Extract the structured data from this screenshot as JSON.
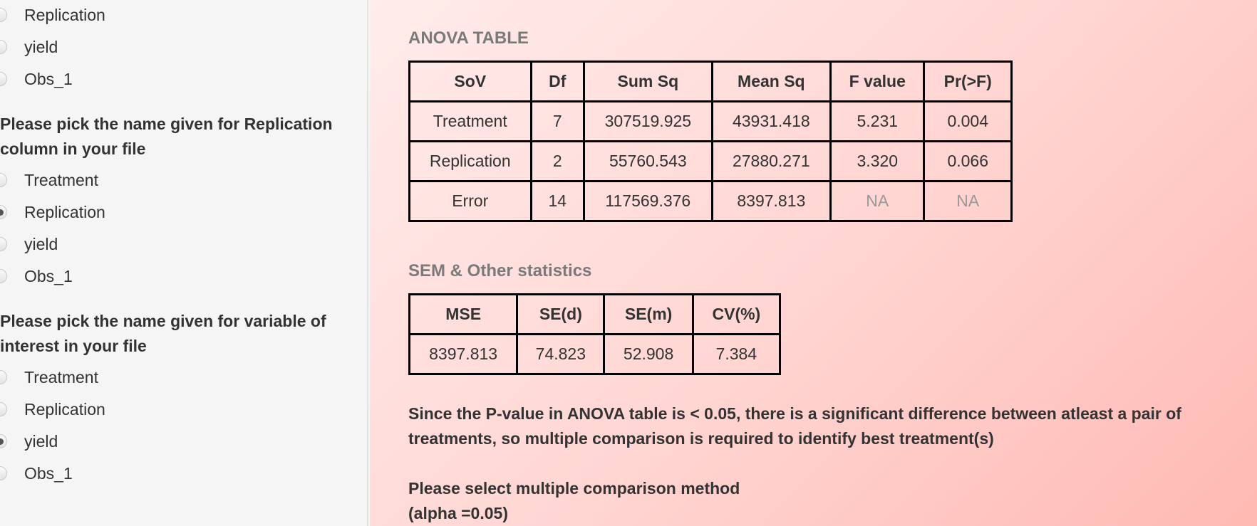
{
  "sidebar": {
    "group1": {
      "options": [
        "Replication",
        "yield",
        "Obs_1"
      ]
    },
    "group2": {
      "question": "Please pick the name given for Replication column in your file",
      "options": [
        "Treatment",
        "Replication",
        "yield",
        "Obs_1"
      ],
      "selected": "Replication"
    },
    "group3": {
      "question": "Please pick the name given for variable of interest in your file",
      "options": [
        "Treatment",
        "Replication",
        "yield",
        "Obs_1"
      ],
      "selected": "yield"
    }
  },
  "anova": {
    "title": "ANOVA TABLE",
    "headers": [
      "SoV",
      "Df",
      "Sum Sq",
      "Mean Sq",
      "F value",
      "Pr(>F)"
    ],
    "rows": [
      [
        "Treatment",
        "7",
        "307519.925",
        "43931.418",
        "5.231",
        "0.004"
      ],
      [
        "Replication",
        "2",
        "55760.543",
        "27880.271",
        "3.320",
        "0.066"
      ],
      [
        "Error",
        "14",
        "117569.376",
        "8397.813",
        "NA",
        "NA"
      ]
    ]
  },
  "sem": {
    "title": "SEM & Other statistics",
    "headers": [
      "MSE",
      "SE(d)",
      "SE(m)",
      "CV(%)"
    ],
    "rows": [
      [
        "8397.813",
        "74.823",
        "52.908",
        "7.384"
      ]
    ]
  },
  "conclusion": "Since the P-value in ANOVA table is < 0.05, there is a significant difference between atleast a pair of treatments, so multiple comparison is required to identify best treatment(s)",
  "method_prompt": {
    "line1": "Please select multiple comparison method",
    "line2": "(alpha =0.05)"
  }
}
